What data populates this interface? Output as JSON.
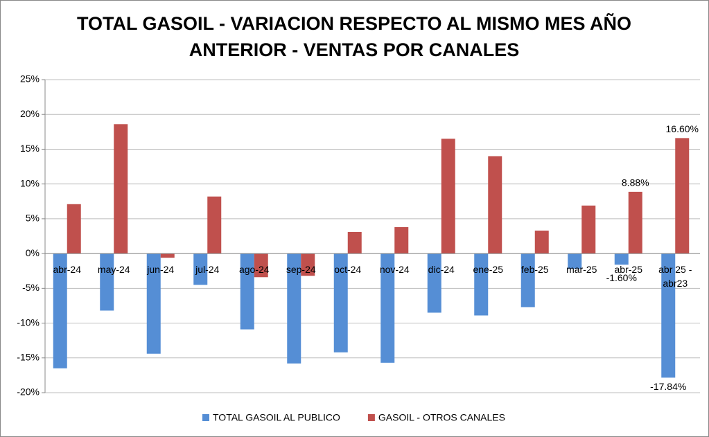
{
  "chart_data": {
    "type": "bar",
    "title": "TOTAL GASOIL - VARIACION RESPECTO AL MISMO MES AÑO ANTERIOR - VENTAS POR CANALES",
    "categories": [
      "abr-24",
      "may-24",
      "jun-24",
      "jul-24",
      "ago-24",
      "sep-24",
      "oct-24",
      "nov-24",
      "dic-24",
      "ene-25",
      "feb-25",
      "mar-25",
      "abr-25",
      "abr 25 - abr23"
    ],
    "series": [
      {
        "name": "TOTAL GASOIL AL PUBLICO",
        "color": "#558ed5",
        "values": [
          -16.5,
          -8.2,
          -14.4,
          -4.5,
          -10.9,
          -15.8,
          -14.2,
          -15.7,
          -8.5,
          -8.9,
          -7.7,
          -2.2,
          -1.6,
          -17.84
        ],
        "value_labels": [
          null,
          null,
          null,
          null,
          null,
          null,
          null,
          null,
          null,
          null,
          null,
          null,
          "-1.60%",
          "-17.84%"
        ]
      },
      {
        "name": "GASOIL - OTROS CANALES",
        "color": "#c0504d",
        "values": [
          7.1,
          18.6,
          -0.6,
          8.2,
          -3.4,
          -3.2,
          3.1,
          3.8,
          16.5,
          14.0,
          3.3,
          6.9,
          8.88,
          16.6
        ],
        "value_labels": [
          null,
          null,
          null,
          null,
          null,
          null,
          null,
          null,
          null,
          null,
          null,
          null,
          "8.88%",
          "16.60%"
        ]
      }
    ],
    "ylim": [
      -20,
      25
    ],
    "yticks": [
      {
        "value": -20,
        "label": "-20%"
      },
      {
        "value": -15,
        "label": "-15%"
      },
      {
        "value": -10,
        "label": "-10%"
      },
      {
        "value": -5,
        "label": "-5%"
      },
      {
        "value": 0,
        "label": "0%"
      },
      {
        "value": 5,
        "label": "5%"
      },
      {
        "value": 10,
        "label": "10%"
      },
      {
        "value": 15,
        "label": "15%"
      },
      {
        "value": 20,
        "label": "20%"
      },
      {
        "value": 25,
        "label": "25%"
      }
    ],
    "grid": true,
    "legend": "bottom"
  }
}
